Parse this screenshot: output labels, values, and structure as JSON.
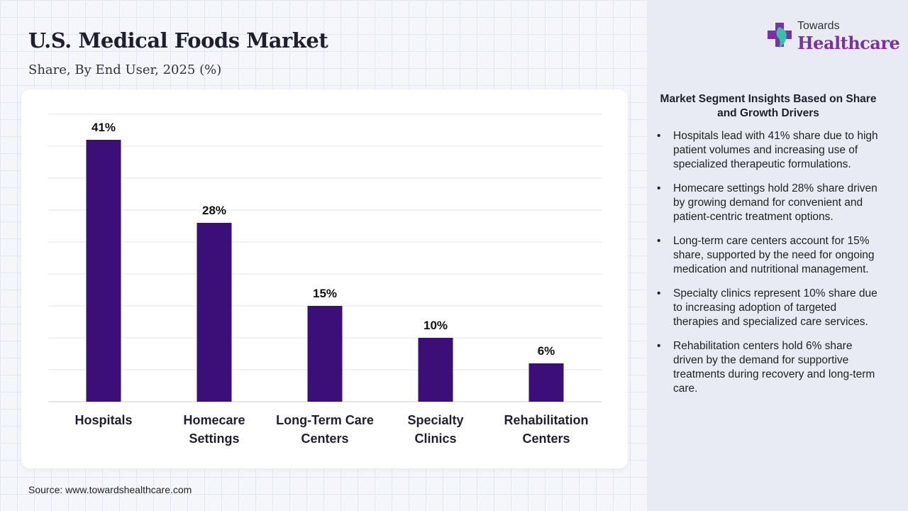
{
  "header": {
    "title": "U.S. Medical Foods Market",
    "subtitle": "Share, By End User, 2025 (%)"
  },
  "logo": {
    "line1": "Towards",
    "line2": "Healthcare"
  },
  "source": "Source: www.towardshealthcare.com",
  "colors": {
    "bar": "#3c0f78",
    "logo_accent": "#7b2fa8",
    "logo_cross_green": "#2ed1a2"
  },
  "insights": {
    "title": "Market Segment Insights Based on Share and Growth Drivers",
    "items": [
      "Hospitals lead with 41% share due to high patient volumes and increasing use of specialized therapeutic formulations.",
      "Homecare settings hold 28% share driven by growing demand for convenient and patient-centric treatment options.",
      "Long-term care centers account for 15% share, supported by the need for ongoing medication and nutritional management.",
      "Specialty clinics represent 10% share due to increasing adoption of targeted therapies and specialized care services.",
      "Rehabilitation centers hold 6% share driven by the demand for supportive treatments during recovery and long-term care."
    ]
  },
  "chart_data": {
    "type": "bar",
    "title": "U.S. Medical Foods Market",
    "subtitle": "Share, By End User, 2025 (%)",
    "categories": [
      [
        "Hospitals"
      ],
      [
        "Homecare",
        "Settings"
      ],
      [
        "Long-Term Care",
        "Centers"
      ],
      [
        "Specialty",
        "Clinics"
      ],
      [
        "Rehabilitation",
        "Centers"
      ]
    ],
    "values": [
      41,
      28,
      15,
      10,
      6
    ],
    "data_labels": [
      "41%",
      "28%",
      "15%",
      "10%",
      "6%"
    ],
    "ylim": [
      0,
      45
    ],
    "y_gridline_step": 5,
    "grid": true,
    "y_axis_labels": false,
    "legend": "none"
  }
}
